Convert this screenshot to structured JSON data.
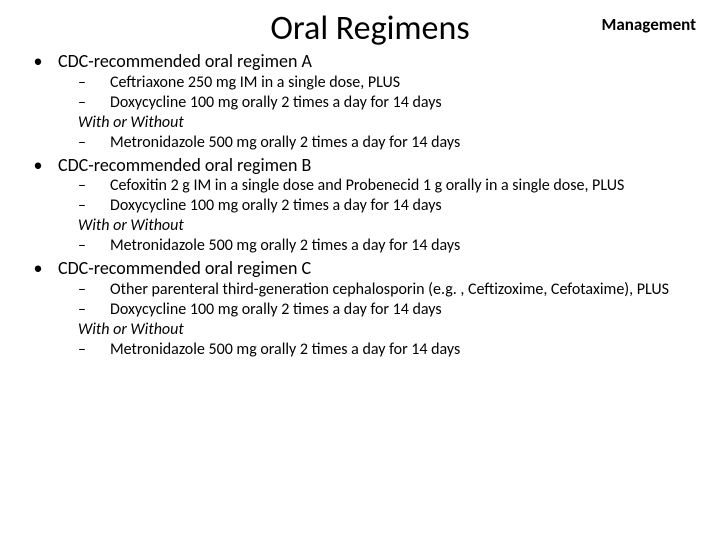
{
  "header_label": "Management",
  "title": "Oral Regimens",
  "bullet_char": "•",
  "dash_char": "–",
  "sections": [
    {
      "heading": "CDC-recommended oral regimen A",
      "items": [
        "Ceftriaxone 250 mg IM in a single dose, PLUS",
        "Doxycycline 100 mg orally 2 times a day for 14 days"
      ],
      "italic": "With or Without",
      "post_items": [
        "Metronidazole 500 mg orally 2 times a day for 14 days"
      ]
    },
    {
      "heading": "CDC-recommended oral regimen B",
      "items": [
        "Cefoxitin 2 g IM in a single dose and Probenecid 1 g orally in a single dose, PLUS",
        "Doxycycline 100 mg orally 2 times a day for 14 days"
      ],
      "italic": "With or Without",
      "post_items": [
        "Metronidazole 500 mg orally 2 times a day for 14 days"
      ]
    },
    {
      "heading": "CDC-recommended oral regimen C",
      "items": [
        "Other parenteral third-generation cephalosporin (e.g. , Ceftizoxime, Cefotaxime), PLUS",
        "Doxycycline 100 mg orally 2 times a day for 14 days"
      ],
      "italic": "With or Without",
      "post_items": [
        "Metronidazole 500 mg orally 2 times a day for 14 days"
      ]
    }
  ]
}
